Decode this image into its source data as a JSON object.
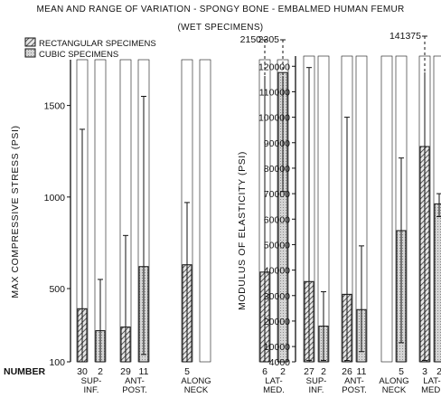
{
  "title_line1": "MEAN AND RANGE OF VARIATION - SPONGY BONE - EMBALMED HUMAN FEMUR",
  "title_line2": "(WET SPECIMENS)",
  "legend": {
    "rect": "RECTANGULAR SPECIMENS",
    "cube": "CUBIC SPECIMENS"
  },
  "number_label": "NUMBER",
  "colors": {
    "ink": "#111111",
    "bar_fill": "#d4d4d4",
    "hatch": "#2a2a2a",
    "background": "#ffffff"
  },
  "chart_data": [
    {
      "type": "bar",
      "ylabel": "MAX COMPRESSIVE STRESS (PSI)",
      "y_ticks": [
        "100",
        "500",
        "1000",
        "1500"
      ],
      "ylim": [
        100,
        1750
      ],
      "categories": [
        "SUP-INF.",
        "ANT-POST.",
        "ALONG NECK",
        "LAT-MED."
      ],
      "series": [
        {
          "name": "RECTANGULAR SPECIMENS",
          "mean": [
            390,
            290,
            630,
            590
          ],
          "min": [
            100,
            100,
            100,
            100
          ],
          "max": [
            1370,
            790,
            970,
            2150
          ],
          "count": [
            "30",
            "29",
            "5",
            "6"
          ]
        },
        {
          "name": "CUBIC SPECIMENS",
          "mean": [
            270,
            620,
            null,
            1680
          ],
          "min": [
            100,
            140,
            null,
            1030
          ],
          "max": [
            550,
            1550,
            null,
            2305
          ],
          "count": [
            "2",
            "11",
            null,
            "2"
          ]
        }
      ],
      "annotations": [
        "2150",
        "2305"
      ],
      "grid": false
    },
    {
      "type": "bar",
      "ylabel": "MODULUS OF ELASTICITY (PSI)",
      "y_ticks": [
        "4000",
        "10000",
        "20000",
        "30000",
        "40000",
        "50000",
        "60000",
        "70000",
        "80000",
        "90000",
        "100000",
        "110000",
        "120000"
      ],
      "ylim": [
        4000,
        124000
      ],
      "categories": [
        "SUP-INF.",
        "ANT-POST.",
        "ALONG NECK",
        "LAT-MED."
      ],
      "series": [
        {
          "name": "RECTANGULAR SPECIMENS",
          "mean": [
            35500,
            30500,
            null,
            88500
          ],
          "min": [
            4500,
            4500,
            null,
            4500
          ],
          "max": [
            119500,
            100000,
            null,
            141375
          ],
          "count": [
            "27",
            "26",
            null,
            "3"
          ]
        },
        {
          "name": "CUBIC SPECIMENS",
          "mean": [
            18000,
            24500,
            55500,
            66000
          ],
          "min": [
            4500,
            8000,
            11500,
            61000
          ],
          "max": [
            31500,
            49500,
            84000,
            70000
          ],
          "count": [
            "2",
            "11",
            "5",
            "2"
          ]
        }
      ],
      "annotations": [
        "141375"
      ],
      "grid": false
    }
  ]
}
